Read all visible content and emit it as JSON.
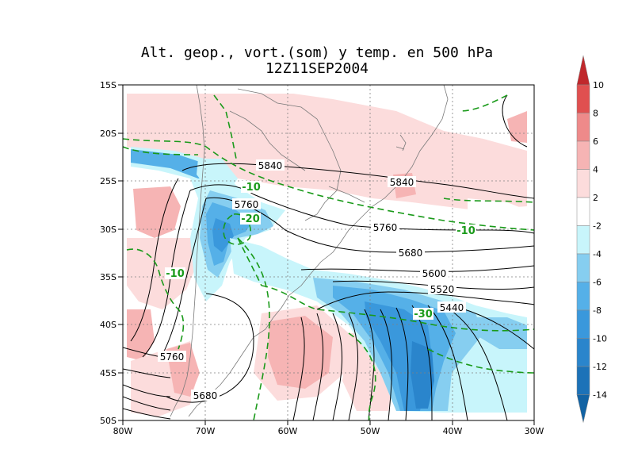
{
  "title": "Alt. geop., vort.(som) y temp. en 500 hPa",
  "subtitle": "12Z11SEP2004",
  "map": {
    "lon_labels": [
      "80W",
      "70W",
      "60W",
      "50W",
      "40W",
      "30W"
    ],
    "lat_labels": [
      "15S",
      "20S",
      "25S",
      "30S",
      "35S",
      "40S",
      "45S",
      "50S"
    ]
  },
  "colorbar": {
    "labels": [
      "10",
      "8",
      "6",
      "4",
      "2",
      "-2",
      "-4",
      "-6",
      "-8",
      "-10",
      "-12",
      "-14"
    ],
    "colors": [
      "#c0282c",
      "#e05050",
      "#ee8a8a",
      "#f6b4b4",
      "#fcdcdc",
      "#ffffff",
      "#c8f5fb",
      "#86cef0",
      "#55b0e8",
      "#3a98dc",
      "#2a85cc",
      "#1c72b8",
      "#1263a4"
    ]
  },
  "geopotential_labels": [
    "5840",
    "5840",
    "5760",
    "5760",
    "5680",
    "5600",
    "5520",
    "5440",
    "5760",
    "5680"
  ],
  "temperature_labels": [
    "-10",
    "-20",
    "-10",
    "-10",
    "-30"
  ],
  "line_colors": {
    "geopotential": "#000000",
    "temperature": "#1a9a1a",
    "coast": "#7a7a7a"
  }
}
